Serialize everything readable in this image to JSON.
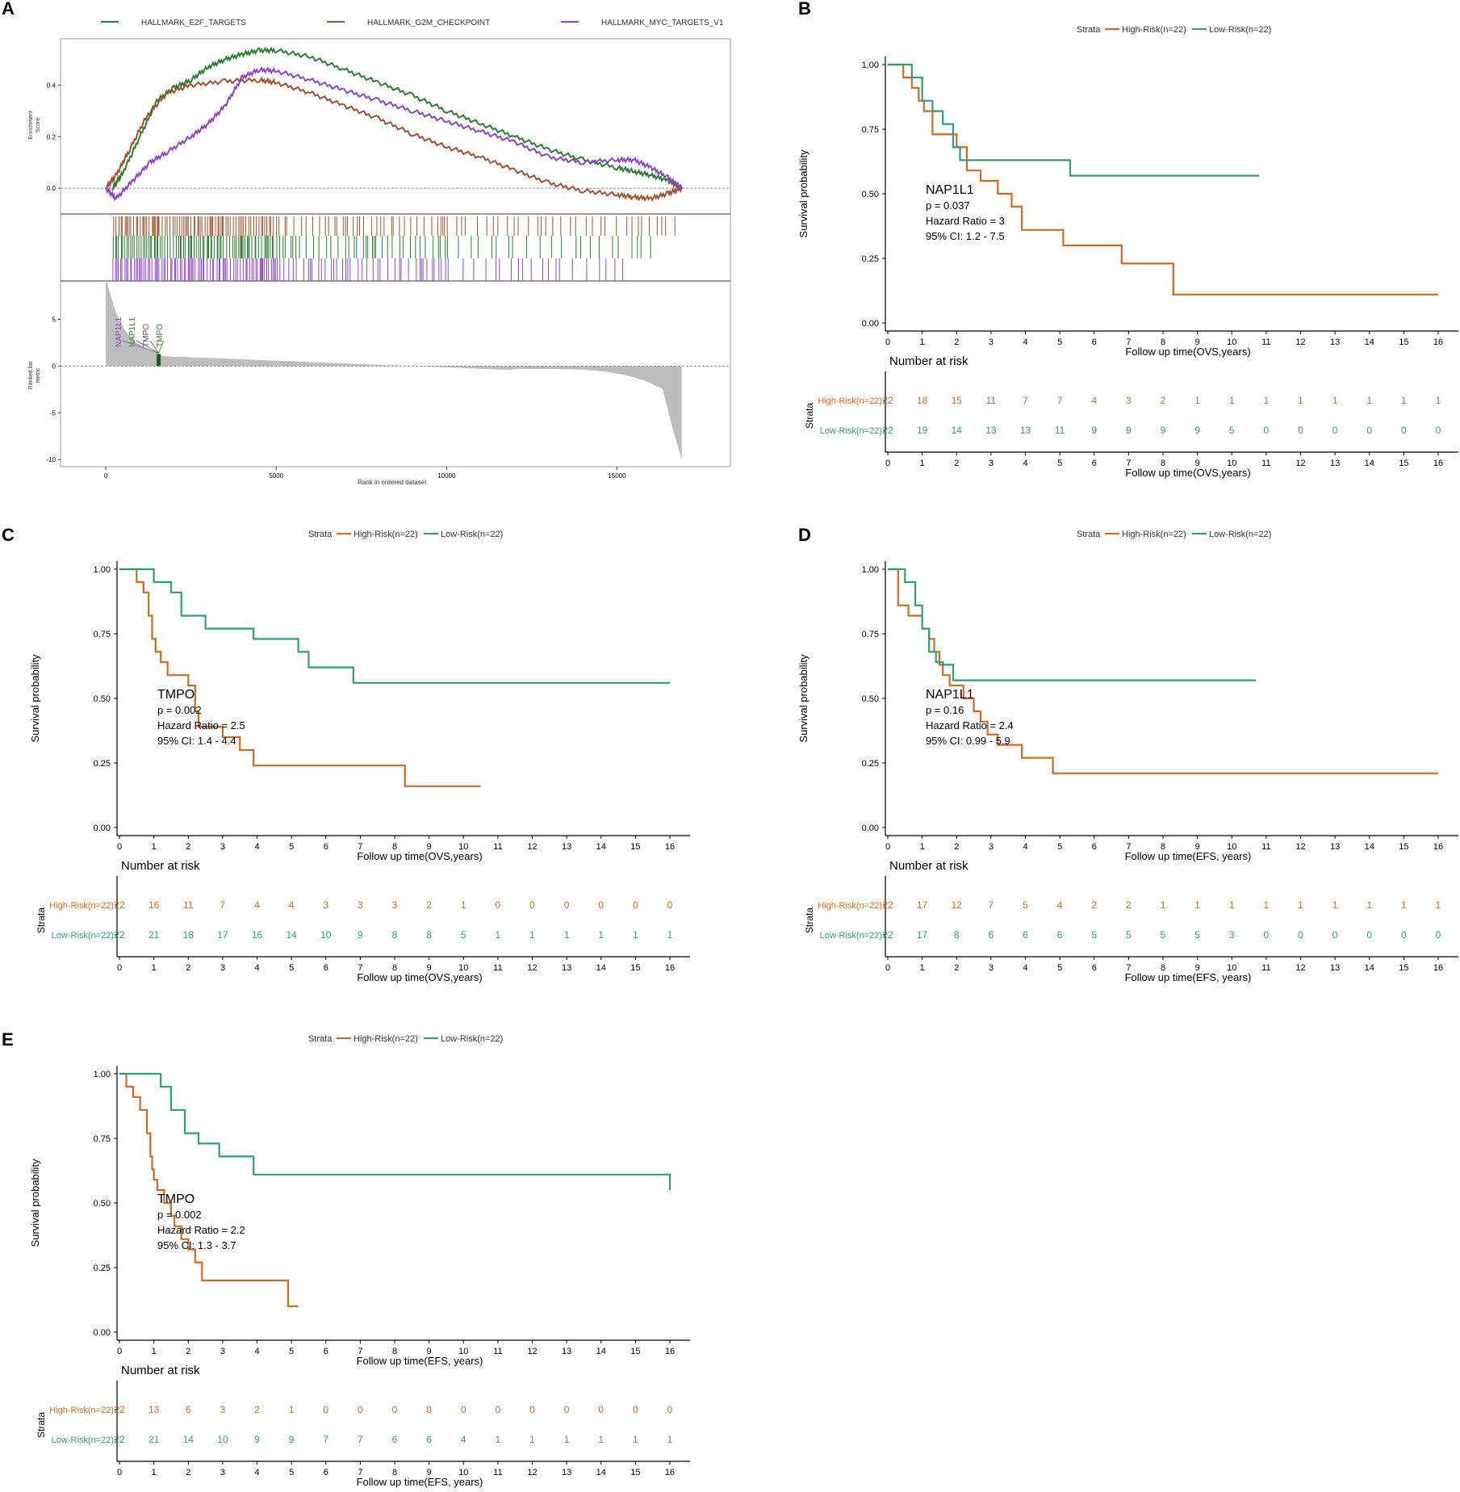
{
  "figure": {
    "panel_labels": [
      "A",
      "B",
      "C",
      "D",
      "E"
    ],
    "colors": {
      "high": "#D2691E",
      "low": "#2E9C7E",
      "e2f": "#2E7D32",
      "g2m": "#A0522D",
      "myc": "#8E44C9",
      "grey": "#bdbdbd"
    }
  },
  "chart_data": [
    {
      "panel": "A",
      "type": "line",
      "title": "",
      "legend": [
        "HALLMARK_E2F_TARGETS",
        "HALLMARK_G2M_CHECKPOINT",
        "HALLMARK_MYC_TARGETS_V1"
      ],
      "ylabel": "Enrichment Score",
      "ylabel_lines": [
        "Enrichment",
        "Score"
      ],
      "ylim": [
        -0.1,
        0.58
      ],
      "yticks": [
        0.0,
        0.2,
        0.4
      ],
      "ytick_labels": [
        "0.0",
        "0.2",
        "0.4"
      ],
      "xlim": [
        -500,
        17500
      ],
      "xticks": [
        0,
        5000,
        10000,
        15000
      ],
      "xtick_labels": [
        "0",
        "5000",
        "10000",
        "15000"
      ],
      "xlabel": "Rank in ordered dataset",
      "rank_ylabel": "Ranked list metric",
      "rank_ylabel_lines": [
        "Ranked list",
        "metric"
      ],
      "rank_ylim": [
        -10.5,
        8.5
      ],
      "rank_yticks": [
        5,
        0,
        -5,
        -10
      ],
      "rank_ytick_labels": [
        "5",
        "0",
        "-5",
        "-10"
      ],
      "gene_labels": [
        "NAP1L1",
        "NAP1L1",
        "TMPO",
        "TMPO"
      ],
      "gene_rank": 1550,
      "series": [
        {
          "name": "HALLMARK_E2F_TARGETS",
          "x": [
            200,
            500,
            1000,
            1500,
            2000,
            2500,
            3000,
            3500,
            4000,
            4500,
            5000,
            6000,
            7000,
            8000,
            9000,
            10000,
            11000,
            12000,
            13000,
            14000,
            15000,
            15500,
            16000,
            16500,
            16900
          ],
          "y": [
            0.0,
            0.06,
            0.2,
            0.34,
            0.39,
            0.42,
            0.47,
            0.5,
            0.52,
            0.535,
            0.535,
            0.51,
            0.46,
            0.41,
            0.36,
            0.3,
            0.25,
            0.2,
            0.15,
            0.11,
            0.08,
            0.065,
            0.05,
            0.03,
            0.0
          ]
        },
        {
          "name": "HALLMARK_G2M_CHECKPOINT",
          "x": [
            0,
            300,
            700,
            1200,
            1800,
            2500,
            3500,
            4500,
            5000,
            6000,
            7000,
            8000,
            9000,
            10000,
            11000,
            12000,
            13000,
            14000,
            15000,
            15500,
            16000,
            16500,
            16900
          ],
          "y": [
            0.0,
            0.05,
            0.15,
            0.28,
            0.37,
            0.4,
            0.415,
            0.42,
            0.41,
            0.37,
            0.32,
            0.27,
            0.21,
            0.16,
            0.12,
            0.07,
            0.02,
            -0.01,
            -0.025,
            -0.035,
            -0.04,
            -0.02,
            0.0
          ]
        },
        {
          "name": "HALLMARK_MYC_TARGETS_V1",
          "x": [
            0,
            300,
            800,
            1300,
            1800,
            2500,
            3000,
            3500,
            4000,
            4500,
            5000,
            6000,
            7000,
            8000,
            9000,
            10000,
            11000,
            12000,
            13000,
            14000,
            15000,
            15500,
            16000,
            16500,
            16900
          ],
          "y": [
            0.0,
            -0.04,
            0.03,
            0.1,
            0.14,
            0.2,
            0.25,
            0.32,
            0.43,
            0.46,
            0.455,
            0.42,
            0.38,
            0.34,
            0.3,
            0.26,
            0.22,
            0.18,
            0.12,
            0.1,
            0.11,
            0.11,
            0.08,
            0.04,
            0.0
          ]
        }
      ]
    },
    {
      "panel": "B",
      "type": "line",
      "title": "",
      "legend_title": "Strata",
      "legend": [
        "High-Risk(n=22)",
        "Low-Risk(n=22)"
      ],
      "ylabel": "Survival probability",
      "xlabel": "Follow up time(OVS,years)",
      "xlim": [
        0,
        16
      ],
      "ylim": [
        0,
        1
      ],
      "xticks": [
        "0",
        "1",
        "2",
        "3",
        "4",
        "5",
        "6",
        "7",
        "8",
        "9",
        "10",
        "11",
        "12",
        "13",
        "14",
        "15",
        "16"
      ],
      "yticks": [
        "0.00",
        "0.25",
        "0.50",
        "0.75",
        "1.00"
      ],
      "annotation": {
        "gene": "NAP1L1",
        "p": "p = 0.037",
        "hr": "Hazard Ratio = 3",
        "ci": "95% CI: 1.2 - 7.5"
      },
      "series": [
        {
          "name": "High-Risk(n=22)",
          "x": [
            0,
            0.45,
            0.7,
            0.9,
            1.05,
            1.3,
            2.0,
            2.3,
            2.7,
            3.2,
            3.6,
            3.9,
            5.1,
            6.8,
            8.3,
            16
          ],
          "y": [
            1.0,
            0.95,
            0.91,
            0.86,
            0.82,
            0.73,
            0.68,
            0.59,
            0.55,
            0.5,
            0.45,
            0.36,
            0.3,
            0.23,
            0.11,
            0.11
          ]
        },
        {
          "name": "Low-Risk(n=22)",
          "x": [
            0,
            0.7,
            1.0,
            1.3,
            1.6,
            1.9,
            2.1,
            5.3,
            10.8
          ],
          "y": [
            1.0,
            0.95,
            0.86,
            0.82,
            0.77,
            0.68,
            0.63,
            0.57,
            0.57
          ]
        }
      ],
      "risk_table": {
        "title": "Number at risk",
        "strata_label": "Strata",
        "rows": [
          {
            "name": "High-Risk(n=22)",
            "values": [
              "22",
              "18",
              "15",
              "11",
              "7",
              "7",
              "4",
              "3",
              "2",
              "1",
              "1",
              "1",
              "1",
              "1",
              "1",
              "1",
              "1"
            ]
          },
          {
            "name": "Low-Risk(n=22)",
            "values": [
              "22",
              "19",
              "14",
              "13",
              "13",
              "11",
              "9",
              "9",
              "9",
              "9",
              "5",
              "0",
              "0",
              "0",
              "0",
              "0",
              "0"
            ]
          }
        ],
        "xlabel": "Follow up time(OVS,years)"
      }
    },
    {
      "panel": "C",
      "type": "line",
      "title": "",
      "legend_title": "Strata",
      "legend": [
        "High-Risk(n=22)",
        "Low-Risk(n=22)"
      ],
      "ylabel": "Survival probability",
      "xlabel": "Follow up time(OVS,years)",
      "xlim": [
        0,
        16
      ],
      "ylim": [
        0,
        1
      ],
      "xticks": [
        "0",
        "1",
        "2",
        "3",
        "4",
        "5",
        "6",
        "7",
        "8",
        "9",
        "10",
        "11",
        "12",
        "13",
        "14",
        "15",
        "16"
      ],
      "yticks": [
        "0.00",
        "0.25",
        "0.50",
        "0.75",
        "1.00"
      ],
      "annotation": {
        "gene": "TMPO",
        "p": "p = 0.002",
        "hr": "Hazard Ratio = 2.5",
        "ci": "95% CI: 1.4 - 4.4"
      },
      "series": [
        {
          "name": "High-Risk(n=22)",
          "x": [
            0,
            0.5,
            0.7,
            0.85,
            0.95,
            1.05,
            1.2,
            1.4,
            2.0,
            2.2,
            2.3,
            3.0,
            3.5,
            3.9,
            8.3,
            10.5
          ],
          "y": [
            1.0,
            0.95,
            0.91,
            0.82,
            0.73,
            0.68,
            0.64,
            0.59,
            0.55,
            0.45,
            0.39,
            0.35,
            0.3,
            0.24,
            0.16,
            0.16
          ]
        },
        {
          "name": "Low-Risk(n=22)",
          "x": [
            0,
            1.0,
            1.5,
            1.8,
            2.5,
            3.9,
            5.2,
            5.5,
            6.8,
            16
          ],
          "y": [
            1.0,
            0.95,
            0.91,
            0.82,
            0.77,
            0.73,
            0.68,
            0.62,
            0.56,
            0.56
          ]
        }
      ],
      "risk_table": {
        "title": "Number at risk",
        "strata_label": "Strata",
        "rows": [
          {
            "name": "High-Risk(n=22)",
            "values": [
              "22",
              "16",
              "11",
              "7",
              "4",
              "4",
              "3",
              "3",
              "3",
              "2",
              "1",
              "0",
              "0",
              "0",
              "0",
              "0",
              "0"
            ]
          },
          {
            "name": "Low-Risk(n=22)",
            "values": [
              "22",
              "21",
              "18",
              "17",
              "16",
              "14",
              "10",
              "9",
              "8",
              "8",
              "5",
              "1",
              "1",
              "1",
              "1",
              "1",
              "1"
            ]
          }
        ],
        "xlabel": "Follow up time(OVS,years)"
      }
    },
    {
      "panel": "D",
      "type": "line",
      "title": "",
      "legend_title": "Strata",
      "legend": [
        "High-Risk(n=22)",
        "Low-Risk(n=22)"
      ],
      "ylabel": "Survival probability",
      "xlabel": "Follow up time(EFS, years)",
      "xlim": [
        0,
        16
      ],
      "ylim": [
        0,
        1
      ],
      "xticks": [
        "0",
        "1",
        "2",
        "3",
        "4",
        "5",
        "6",
        "7",
        "8",
        "9",
        "10",
        "11",
        "12",
        "13",
        "14",
        "15",
        "16"
      ],
      "yticks": [
        "0.00",
        "0.25",
        "0.50",
        "0.75",
        "1.00"
      ],
      "annotation": {
        "gene": "NAP1L1",
        "p": "p = 0.16",
        "hr": "Hazard Ratio = 2.4",
        "ci": "95% CI: 0.99 - 5.9"
      },
      "series": [
        {
          "name": "High-Risk(n=22)",
          "x": [
            0,
            0.3,
            0.6,
            1.0,
            1.2,
            1.35,
            1.5,
            1.6,
            1.8,
            2.2,
            2.5,
            2.7,
            2.9,
            3.2,
            3.9,
            4.8,
            16
          ],
          "y": [
            1.0,
            0.86,
            0.82,
            0.77,
            0.73,
            0.68,
            0.63,
            0.59,
            0.55,
            0.5,
            0.45,
            0.41,
            0.36,
            0.32,
            0.27,
            0.21,
            0.21
          ]
        },
        {
          "name": "Low-Risk(n=22)",
          "x": [
            0,
            0.5,
            0.8,
            1.0,
            1.2,
            1.4,
            1.6,
            1.9,
            10.7
          ],
          "y": [
            1.0,
            0.95,
            0.86,
            0.77,
            0.68,
            0.64,
            0.63,
            0.57,
            0.57
          ]
        }
      ],
      "risk_table": {
        "title": "Number at risk",
        "strata_label": "Strata",
        "rows": [
          {
            "name": "High-Risk(n=22)",
            "values": [
              "22",
              "17",
              "12",
              "7",
              "5",
              "4",
              "2",
              "2",
              "1",
              "1",
              "1",
              "1",
              "1",
              "1",
              "1",
              "1",
              "1"
            ]
          },
          {
            "name": "Low-Risk(n=22)",
            "values": [
              "22",
              "17",
              "8",
              "6",
              "6",
              "6",
              "5",
              "5",
              "5",
              "5",
              "3",
              "0",
              "0",
              "0",
              "0",
              "0",
              "0"
            ]
          }
        ],
        "xlabel": "Follow up time(EFS, years)"
      }
    },
    {
      "panel": "E",
      "type": "line",
      "title": "",
      "legend_title": "Strata",
      "legend": [
        "High-Risk(n=22)",
        "Low-Risk(n=22)"
      ],
      "ylabel": "Survival probability",
      "xlabel": "Follow up time(EFS, years)",
      "xlim": [
        0,
        16
      ],
      "ylim": [
        0,
        1
      ],
      "xticks": [
        "0",
        "1",
        "2",
        "3",
        "4",
        "5",
        "6",
        "7",
        "8",
        "9",
        "10",
        "11",
        "12",
        "13",
        "14",
        "15",
        "16"
      ],
      "yticks": [
        "0.00",
        "0.25",
        "0.50",
        "0.75",
        "1.00"
      ],
      "annotation": {
        "gene": "TMPO",
        "p": "p = 0.002",
        "hr": "Hazard Ratio = 2.2",
        "ci": "95% CI: 1.3 - 3.7"
      },
      "series": [
        {
          "name": "High-Risk(n=22)",
          "x": [
            0,
            0.2,
            0.4,
            0.6,
            0.8,
            0.9,
            0.95,
            1.0,
            1.1,
            1.3,
            1.5,
            1.6,
            1.8,
            2.0,
            2.2,
            2.4,
            2.6,
            4.9,
            5.2
          ],
          "y": [
            1.0,
            0.95,
            0.91,
            0.86,
            0.77,
            0.68,
            0.63,
            0.59,
            0.55,
            0.5,
            0.45,
            0.41,
            0.36,
            0.32,
            0.27,
            0.2,
            0.2,
            0.1,
            0.1
          ]
        },
        {
          "name": "Low-Risk(n=22)",
          "x": [
            0,
            1.2,
            1.5,
            1.9,
            2.3,
            2.9,
            3.9,
            16
          ],
          "y": [
            1.0,
            0.95,
            0.86,
            0.77,
            0.73,
            0.68,
            0.61,
            0.55
          ]
        }
      ],
      "risk_table": {
        "title": "Number at risk",
        "strata_label": "Strata",
        "rows": [
          {
            "name": "High-Risk(n=22)",
            "values": [
              "22",
              "13",
              "6",
              "3",
              "2",
              "1",
              "0",
              "0",
              "0",
              "0",
              "0",
              "0",
              "0",
              "0",
              "0",
              "0",
              "0"
            ]
          },
          {
            "name": "Low-Risk(n=22)",
            "values": [
              "22",
              "21",
              "14",
              "10",
              "9",
              "9",
              "7",
              "7",
              "6",
              "6",
              "4",
              "1",
              "1",
              "1",
              "1",
              "1",
              "1"
            ]
          }
        ],
        "xlabel": "Follow up time(EFS, years)"
      }
    }
  ]
}
